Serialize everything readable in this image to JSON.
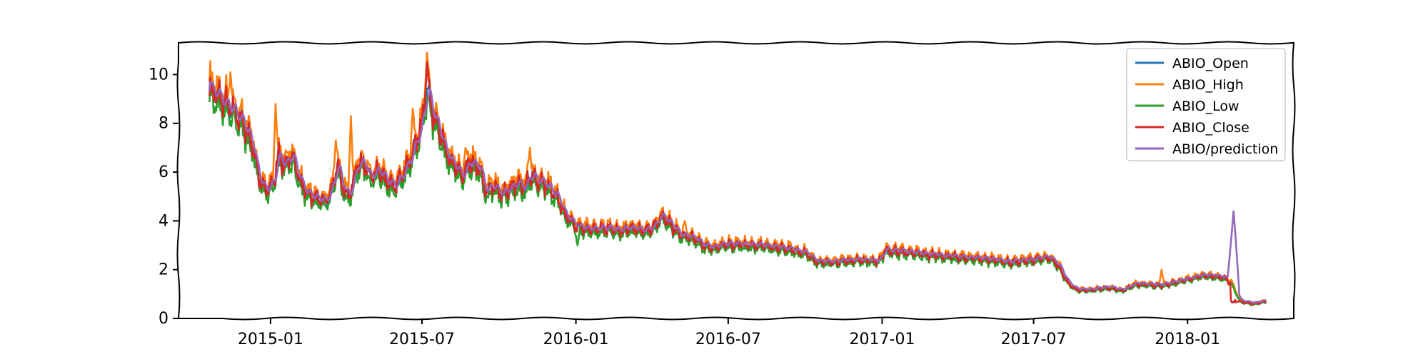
{
  "chart_data": {
    "type": "line",
    "title": "",
    "xlabel": "",
    "ylabel": "",
    "x_start": "2014-10-20",
    "x_end": "2018-04-05",
    "xlim": [
      "2014-09-13",
      "2018-05-08"
    ],
    "ylim": [
      0,
      11.3
    ],
    "yticks": [
      0,
      2,
      4,
      6,
      8,
      10
    ],
    "xticks": [
      "2015-01",
      "2015-07",
      "2016-01",
      "2016-07",
      "2017-01",
      "2017-07",
      "2018-01"
    ],
    "grid": false,
    "legend_position": "top-right",
    "anchors": [
      [
        "2014-10-20",
        9.45
      ],
      [
        "2014-10-31",
        9.1
      ],
      [
        "2014-11-10",
        8.7
      ],
      [
        "2014-11-21",
        8.4
      ],
      [
        "2014-12-01",
        7.9
      ],
      [
        "2014-12-10",
        7.2
      ],
      [
        "2014-12-18",
        5.8
      ],
      [
        "2014-12-26",
        5.2
      ],
      [
        "2015-01-05",
        5.6
      ],
      [
        "2015-01-10",
        6.7
      ],
      [
        "2015-01-18",
        6.3
      ],
      [
        "2015-01-28",
        6.6
      ],
      [
        "2015-02-08",
        5.4
      ],
      [
        "2015-02-18",
        5.0
      ],
      [
        "2015-02-28",
        4.9
      ],
      [
        "2015-03-08",
        4.8
      ],
      [
        "2015-03-15",
        5.2
      ],
      [
        "2015-03-22",
        6.3
      ],
      [
        "2015-03-29",
        5.3
      ],
      [
        "2015-04-06",
        5.0
      ],
      [
        "2015-04-14",
        6.2
      ],
      [
        "2015-04-22",
        6.4
      ],
      [
        "2015-04-30",
        5.8
      ],
      [
        "2015-05-10",
        6.0
      ],
      [
        "2015-05-20",
        5.7
      ],
      [
        "2015-05-30",
        5.4
      ],
      [
        "2015-06-10",
        6.0
      ],
      [
        "2015-06-20",
        6.8
      ],
      [
        "2015-06-30",
        7.9
      ],
      [
        "2015-07-08",
        9.3
      ],
      [
        "2015-07-14",
        8.4
      ],
      [
        "2015-07-22",
        7.6
      ],
      [
        "2015-08-01",
        6.6
      ],
      [
        "2015-08-10",
        6.2
      ],
      [
        "2015-08-18",
        5.8
      ],
      [
        "2015-08-28",
        6.4
      ],
      [
        "2015-09-08",
        6.2
      ],
      [
        "2015-09-15",
        5.2
      ],
      [
        "2015-09-25",
        5.4
      ],
      [
        "2015-10-05",
        5.1
      ],
      [
        "2015-10-15",
        5.3
      ],
      [
        "2015-10-25",
        5.5
      ],
      [
        "2015-11-01",
        5.3
      ],
      [
        "2015-11-08",
        5.9
      ],
      [
        "2015-11-20",
        5.6
      ],
      [
        "2015-12-01",
        5.3
      ],
      [
        "2015-12-12",
        4.9
      ],
      [
        "2015-12-20",
        4.2
      ],
      [
        "2016-01-01",
        3.8
      ],
      [
        "2016-01-10",
        3.7
      ],
      [
        "2016-01-20",
        3.6
      ],
      [
        "2016-02-05",
        3.7
      ],
      [
        "2016-02-20",
        3.6
      ],
      [
        "2016-03-10",
        3.7
      ],
      [
        "2016-03-25",
        3.6
      ],
      [
        "2016-04-05",
        3.8
      ],
      [
        "2016-04-12",
        4.2
      ],
      [
        "2016-04-22",
        3.9
      ],
      [
        "2016-05-05",
        3.4
      ],
      [
        "2016-05-20",
        3.3
      ],
      [
        "2016-06-01",
        3.0
      ],
      [
        "2016-06-15",
        2.9
      ],
      [
        "2016-07-01",
        3.05
      ],
      [
        "2016-08-01",
        3.0
      ],
      [
        "2016-09-01",
        2.9
      ],
      [
        "2016-10-01",
        2.7
      ],
      [
        "2016-10-15",
        2.3
      ],
      [
        "2016-11-01",
        2.3
      ],
      [
        "2016-12-01",
        2.4
      ],
      [
        "2016-12-28",
        2.35
      ],
      [
        "2017-01-05",
        2.8
      ],
      [
        "2017-02-01",
        2.7
      ],
      [
        "2017-03-01",
        2.6
      ],
      [
        "2017-04-01",
        2.5
      ],
      [
        "2017-05-01",
        2.45
      ],
      [
        "2017-06-01",
        2.3
      ],
      [
        "2017-07-01",
        2.4
      ],
      [
        "2017-07-20",
        2.5
      ],
      [
        "2017-08-01",
        2.1
      ],
      [
        "2017-08-10",
        1.5
      ],
      [
        "2017-08-20",
        1.2
      ],
      [
        "2017-09-01",
        1.15
      ],
      [
        "2017-10-01",
        1.25
      ],
      [
        "2017-10-15",
        1.15
      ],
      [
        "2017-11-01",
        1.4
      ],
      [
        "2017-12-01",
        1.35
      ],
      [
        "2017-12-20",
        1.5
      ],
      [
        "2018-01-01",
        1.6
      ],
      [
        "2018-01-20",
        1.75
      ],
      [
        "2018-02-05",
        1.7
      ],
      [
        "2018-02-14",
        1.65
      ],
      [
        "2018-02-22",
        1.5
      ],
      [
        "2018-03-05",
        0.7
      ],
      [
        "2018-03-20",
        0.6
      ],
      [
        "2018-04-05",
        0.7
      ]
    ],
    "spikes": [
      {
        "date": "2014-11-14",
        "series": "high",
        "value": 10.1
      },
      {
        "date": "2015-01-07",
        "series": "high",
        "value": 8.8
      },
      {
        "date": "2015-03-20",
        "series": "high",
        "value": 7.3
      },
      {
        "date": "2015-04-07",
        "series": "high",
        "value": 8.3
      },
      {
        "date": "2015-06-20",
        "series": "high",
        "value": 8.6
      },
      {
        "date": "2015-07-07",
        "series": "high",
        "value": 10.9
      },
      {
        "date": "2015-07-07",
        "series": "close",
        "value": 10.5
      },
      {
        "date": "2015-08-22",
        "series": "high",
        "value": 7.0
      },
      {
        "date": "2015-11-07",
        "series": "high",
        "value": 7.0
      },
      {
        "date": "2016-01-03",
        "series": "low",
        "value": 3.0
      },
      {
        "date": "2016-05-10",
        "series": "high",
        "value": 4.0
      },
      {
        "date": "2017-12-01",
        "series": "high",
        "value": 2.0
      },
      {
        "date": "2018-02-25",
        "series": "prediction",
        "value": 4.4
      }
    ],
    "series": [
      {
        "name": "ABIO_Open",
        "key": "open",
        "color": "#1f77b4"
      },
      {
        "name": "ABIO_High",
        "key": "high",
        "color": "#ff7f0e"
      },
      {
        "name": "ABIO_Low",
        "key": "low",
        "color": "#2ca02c"
      },
      {
        "name": "ABIO_Close",
        "key": "close",
        "color": "#d62728"
      },
      {
        "name": "ABIO/prediction",
        "key": "prediction",
        "color": "#9467bd"
      }
    ]
  }
}
